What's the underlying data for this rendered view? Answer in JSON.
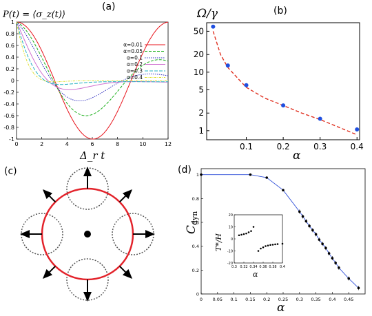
{
  "panels": {
    "a": {
      "label": "(a)",
      "ylabel": "P(t) = ⟨σ_z(t)⟩",
      "xlabel": "Δ_r t"
    },
    "b": {
      "label": "(b)",
      "ylabel": "Ω/γ",
      "xlabel": "α"
    },
    "c": {
      "label": "(c)"
    },
    "d": {
      "label": "(d)",
      "ylabel": "C_dyn",
      "xlabel": "α",
      "inset_ylabel": "T*/H",
      "inset_xlabel": "α"
    }
  },
  "chart_data": [
    {
      "panel": "a",
      "type": "line",
      "xlim": [
        0,
        12
      ],
      "ylim": [
        -1,
        1
      ],
      "xticks": [
        "0",
        "2",
        "4",
        "6",
        "8",
        "10",
        "12"
      ],
      "yticks": [
        "1",
        "0.8",
        "0.6",
        "0.4",
        "0.2",
        "0",
        "-0.2",
        "-0.4",
        "-0.6",
        "-0.8",
        "-1"
      ],
      "legend_position": "right",
      "series": [
        {
          "name": "α=0.01",
          "color": "#e8141c",
          "dash": "",
          "omega": 1.0,
          "decay": 0.0,
          "floor": 0.0
        },
        {
          "name": "α=0.05",
          "color": "#1cb01c",
          "dash": "4,2",
          "omega": 1.04,
          "decay": 0.09,
          "floor": 0.0
        },
        {
          "name": "α=0.1",
          "color": "#3030c0",
          "dash": "1.5,1.5",
          "omega": 1.08,
          "decay": 0.2,
          "floor": 0.0
        },
        {
          "name": "α=0.2",
          "color": "#d070d0",
          "dash": "",
          "omega": 1.15,
          "decay": 0.45,
          "floor": -0.03
        },
        {
          "name": "α=0.3",
          "color": "#20b0c0",
          "dash": "5,2",
          "omega": 1.25,
          "decay": 0.75,
          "floor": -0.02
        },
        {
          "name": "α=0.4",
          "color": "#e0e030",
          "dash": "3,1.5,1,1.5",
          "omega": 1.4,
          "decay": 1.1,
          "floor": 0.0
        }
      ]
    },
    {
      "panel": "b",
      "type": "scatter",
      "ylog": true,
      "xlim": [
        0,
        0.4
      ],
      "ylim": [
        0.7,
        70
      ],
      "xticks": [
        "0.1",
        "0.2",
        "0.3",
        "0.4"
      ],
      "yticks": [
        "50",
        "20",
        "10",
        "5",
        "2",
        "1"
      ],
      "points_x": [
        0.01,
        0.05,
        0.1,
        0.2,
        0.3,
        0.4
      ],
      "points_y": [
        60,
        13,
        6,
        2.7,
        1.6,
        1.05
      ],
      "fit_x": [
        0.01,
        0.03,
        0.05,
        0.08,
        0.1,
        0.15,
        0.2,
        0.25,
        0.3,
        0.35,
        0.4
      ],
      "fit_y": [
        50,
        20,
        12,
        7.5,
        5.5,
        3.6,
        2.7,
        2.0,
        1.55,
        1.15,
        0.85
      ],
      "point_color": "#1f4fe0",
      "fit_color": "#e03020"
    },
    {
      "panel": "d",
      "type": "line",
      "xlim": [
        0,
        0.5
      ],
      "ylim": [
        0,
        1.05
      ],
      "xticks": [
        "0",
        "0.05",
        "0.1",
        "0.15",
        "0.2",
        "0.25",
        "0.3",
        "0.35",
        "0.4",
        "0.45"
      ],
      "yticks": [
        "1",
        "0.8",
        "0.6",
        "0.4",
        "0.2",
        "0"
      ],
      "x": [
        0,
        0.15,
        0.2,
        0.25,
        0.3,
        0.31,
        0.32,
        0.33,
        0.34,
        0.35,
        0.36,
        0.37,
        0.38,
        0.39,
        0.4,
        0.41,
        0.42,
        0.45,
        0.48
      ],
      "y": [
        1.0,
        1.0,
        0.975,
        0.87,
        0.69,
        0.65,
        0.61,
        0.57,
        0.535,
        0.5,
        0.455,
        0.42,
        0.385,
        0.34,
        0.3,
        0.26,
        0.22,
        0.13,
        0.05
      ],
      "color": "#2f4fd8",
      "inset": {
        "xlim": [
          0.3,
          0.4
        ],
        "ylim": [
          -20,
          20
        ],
        "xticks": [
          "0.3",
          "0.32",
          "0.34",
          "0.36",
          "0.38",
          "0.4"
        ],
        "yticks": [
          "20",
          "10",
          "0",
          "-10",
          "-20"
        ],
        "x": [
          0.31,
          0.315,
          0.32,
          0.325,
          0.33,
          0.335,
          0.34,
          0.35,
          0.355,
          0.36,
          0.365,
          0.37,
          0.375,
          0.38,
          0.385,
          0.39,
          0.4
        ],
        "y": [
          3,
          3.5,
          4,
          4.5,
          5.5,
          6.5,
          10,
          -10,
          -8,
          -7,
          -6,
          -5.5,
          -5,
          -4.8,
          -4.5,
          -4.3,
          -4
        ]
      }
    }
  ]
}
